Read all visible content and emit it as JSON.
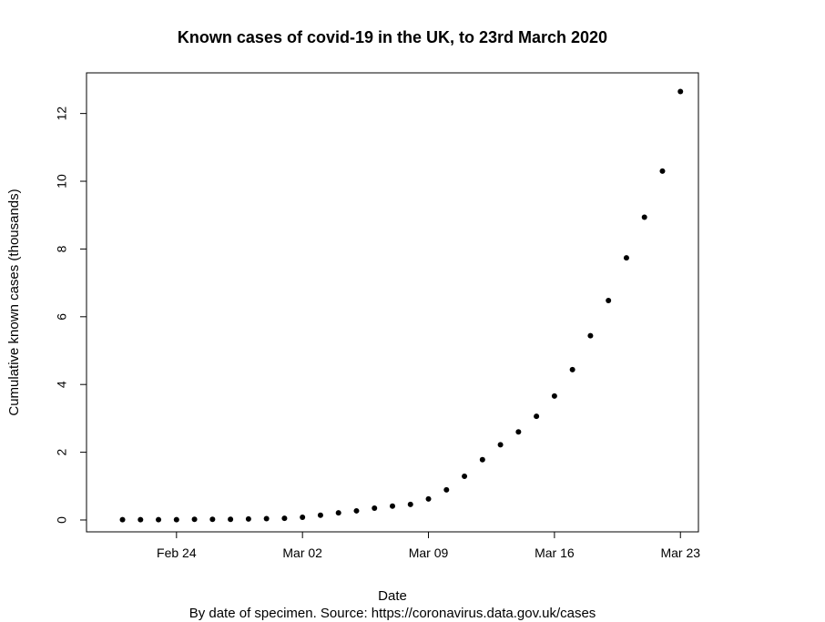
{
  "chart_data": {
    "type": "scatter",
    "title": "Known cases of covid-19 in the UK, to 23rd March 2020",
    "xlabel": "Date",
    "ylabel": "Cumulative known cases (thousands)",
    "caption": "By date of specimen. Source: https://coronavirus.data.gov.uk/cases",
    "x_range": [
      "2020-02-19",
      "2020-03-24"
    ],
    "ylim": [
      -0.35,
      13.2
    ],
    "x_ticks": [
      {
        "date": "2020-02-24",
        "label": "Feb 24"
      },
      {
        "date": "2020-03-02",
        "label": "Mar 02"
      },
      {
        "date": "2020-03-09",
        "label": "Mar 09"
      },
      {
        "date": "2020-03-16",
        "label": "Mar 16"
      },
      {
        "date": "2020-03-23",
        "label": "Mar 23"
      }
    ],
    "y_ticks": [
      0,
      2,
      4,
      6,
      8,
      10,
      12
    ],
    "grid": false,
    "legend": "none",
    "marker_color": "#000000",
    "x": [
      "2020-02-21",
      "2020-02-22",
      "2020-02-23",
      "2020-02-24",
      "2020-02-25",
      "2020-02-26",
      "2020-02-27",
      "2020-02-28",
      "2020-02-29",
      "2020-03-01",
      "2020-03-02",
      "2020-03-03",
      "2020-03-04",
      "2020-03-05",
      "2020-03-06",
      "2020-03-07",
      "2020-03-08",
      "2020-03-09",
      "2020-03-10",
      "2020-03-11",
      "2020-03-12",
      "2020-03-13",
      "2020-03-14",
      "2020-03-15",
      "2020-03-16",
      "2020-03-17",
      "2020-03-18",
      "2020-03-19",
      "2020-03-20",
      "2020-03-21",
      "2020-03-22",
      "2020-03-23"
    ],
    "y": [
      0.01,
      0.01,
      0.01,
      0.01,
      0.02,
      0.02,
      0.02,
      0.03,
      0.04,
      0.05,
      0.08,
      0.14,
      0.21,
      0.27,
      0.35,
      0.41,
      0.46,
      0.62,
      0.89,
      1.29,
      1.78,
      2.22,
      2.6,
      3.06,
      3.66,
      4.44,
      5.44,
      6.48,
      7.74,
      8.94,
      10.3,
      12.65
    ]
  }
}
